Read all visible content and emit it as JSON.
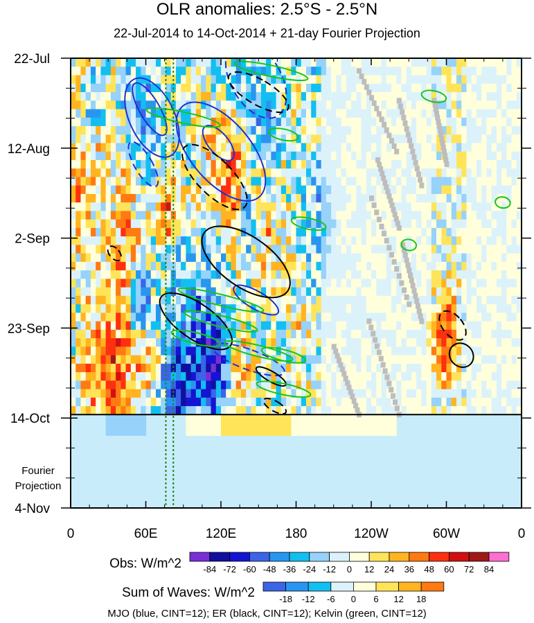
{
  "chart_data": {
    "type": "heatmap",
    "title": "OLR anomalies: 2.5°S - 2.5°N",
    "subtitle": "22-Jul-2014 to 14-Oct-2014 + 21-day Fourier Projection",
    "x_ticks": [
      "0",
      "60E",
      "120E",
      "180",
      "120W",
      "60W",
      "0"
    ],
    "y_ticks": [
      "22-Jul",
      "12-Aug",
      "2-Sep",
      "23-Sep",
      "14-Oct",
      "4-Nov"
    ],
    "x_range_deg": [
      0,
      360
    ],
    "y_range_days": [
      0,
      106
    ],
    "obs_end_day": 84,
    "projection_label": [
      "Fourier",
      "Projection"
    ],
    "legend_obs": {
      "label": "Obs: W/m^2",
      "ticks": [
        "-84",
        "-72",
        "-60",
        "-48",
        "-36",
        "-24",
        "-12",
        "0",
        "12",
        "24",
        "36",
        "48",
        "60",
        "72",
        "84"
      ],
      "colors": [
        "#7a2fd6",
        "#1010a0",
        "#1414d2",
        "#3c64e6",
        "#2896f0",
        "#12bff0",
        "#96d2fa",
        "#dcf2fa",
        "#ffffdc",
        "#ffe45a",
        "#ffb420",
        "#ff7a12",
        "#ff3010",
        "#d21010",
        "#a01818",
        "#ff6fd0"
      ]
    },
    "legend_waves": {
      "label": "Sum of Waves: W/m^2",
      "ticks": [
        "-18",
        "-12",
        "-6",
        "0",
        "6",
        "12",
        "18"
      ],
      "colors": [
        "#3c64e6",
        "#2896f0",
        "#12bff0",
        "#dcf2fa",
        "#ffffdc",
        "#ffe45a",
        "#ffb420",
        "#ff7a12"
      ]
    },
    "footer": "MJO (blue, CINT=12); ER (black, CINT=12); Kelvin (green, CINT=12)",
    "reference_lines_lon": [
      76,
      82
    ],
    "colors": {
      "mjo": "#1f2fd0",
      "er": "#000000",
      "kelvin": "#18c418",
      "missing": "#bdbdbd",
      "projection_bg": "#c9ecfb",
      "ref_line": "#1a8a1a"
    }
  }
}
